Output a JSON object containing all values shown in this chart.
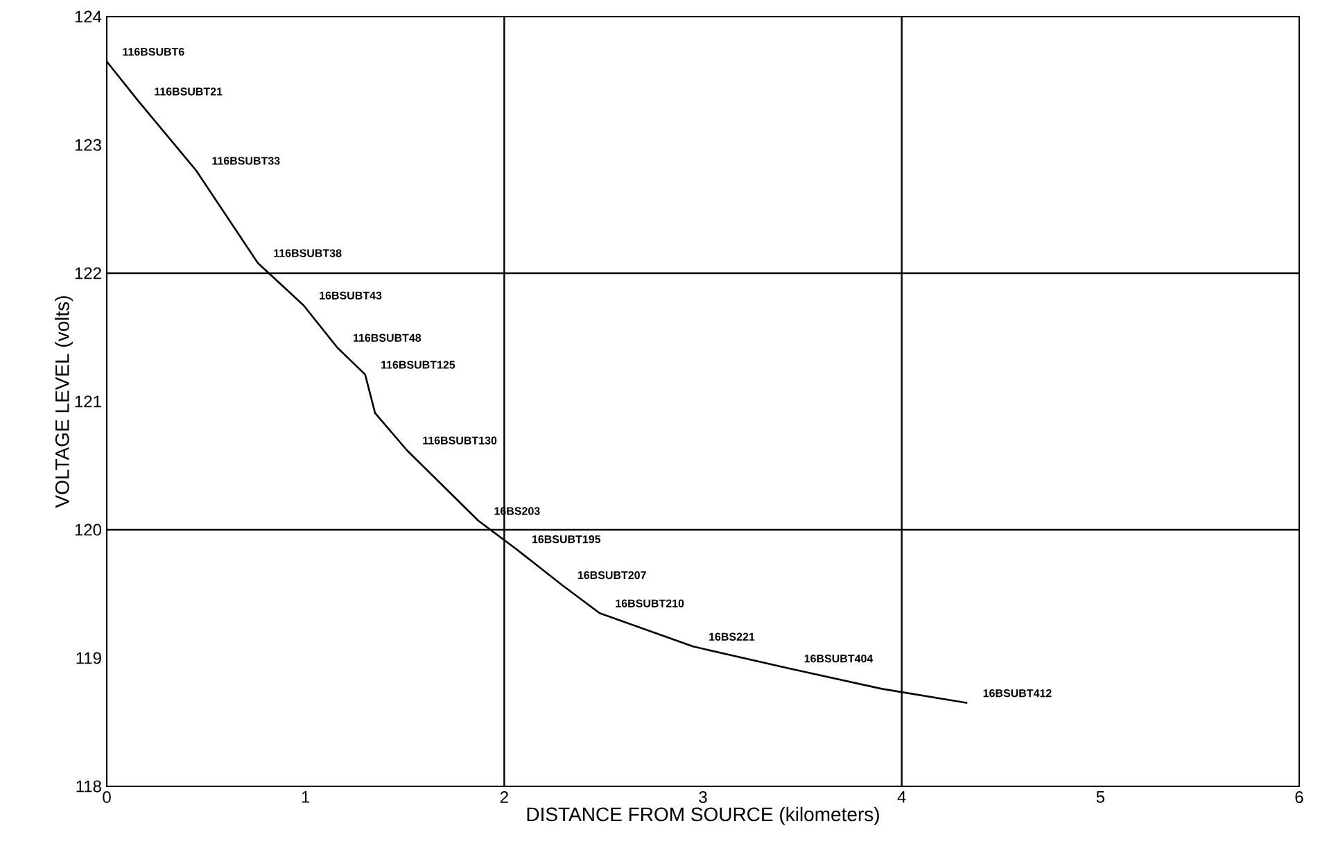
{
  "chart_data": {
    "type": "line",
    "xlabel": "DISTANCE FROM SOURCE (kilometers)",
    "ylabel": "VOLTAGE LEVEL (volts)",
    "xlim": [
      0,
      6
    ],
    "ylim": [
      118,
      124
    ],
    "xticks": [
      0,
      1,
      2,
      3,
      4,
      5,
      6
    ],
    "yticks": [
      118,
      119,
      120,
      121,
      122,
      123,
      124
    ],
    "series": [
      {
        "color": "#000000",
        "x": [
          0,
          0.16,
          0.45,
          0.76,
          0.99,
          1.16,
          1.3,
          1.35,
          1.51,
          1.87,
          2.06,
          2.29,
          2.48,
          2.95,
          3.43,
          3.9,
          4.33
        ],
        "values": [
          123.65,
          123.34,
          122.8,
          122.08,
          121.75,
          121.42,
          121.21,
          120.91,
          120.62,
          120.07,
          119.85,
          119.57,
          119.35,
          119.09,
          118.92,
          118.76,
          118.65
        ]
      }
    ],
    "ref_lines": [
      {
        "axis": "x",
        "value": 2
      },
      {
        "axis": "x",
        "value": 4
      },
      {
        "axis": "y",
        "value": 120
      },
      {
        "axis": "y",
        "value": 122
      }
    ],
    "annotations": [
      "116BSUBT6",
      "116BSUBT21",
      "116BSUBT33",
      "116BSUBT38",
      "16BSUBT43",
      "116BSUBT48",
      "116BSUBT125",
      "116BSUBT130",
      "16BS203",
      "16BSUBT195",
      "16BSUBT207",
      "16BSUBT210",
      "16BS221",
      "16BSUBT404",
      "16BSUBT412"
    ]
  }
}
